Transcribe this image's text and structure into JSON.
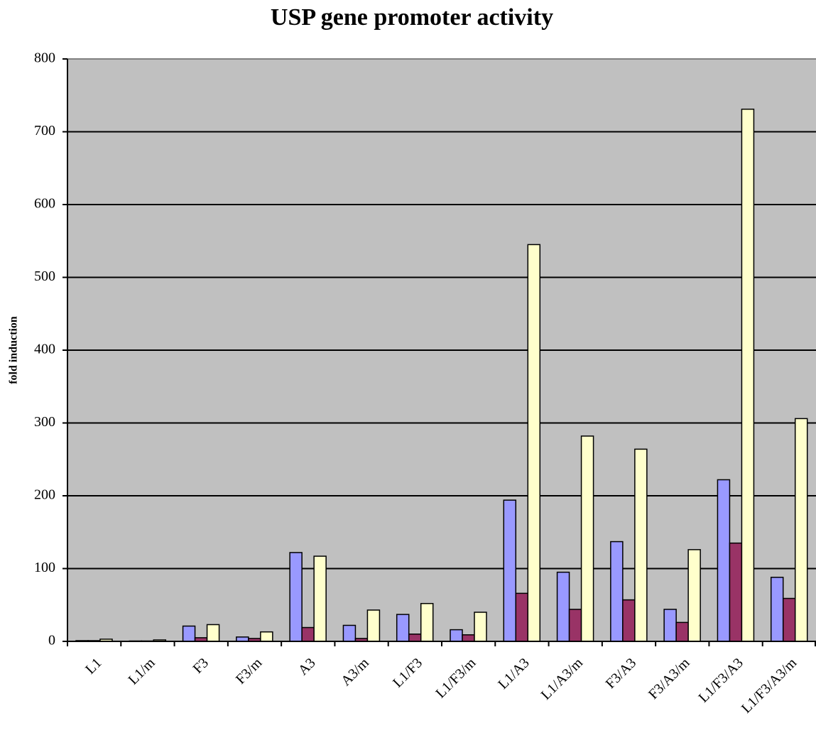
{
  "chart_data": {
    "type": "bar",
    "title": "USP gene promoter activity",
    "ylabel": "fold induction",
    "categories": [
      "L1",
      "L1/m",
      "F3",
      "F3/m",
      "A3",
      "A3/m",
      "L1/F3",
      "L1/F3/m",
      "L1/A3",
      "L1/A3/m",
      "F3/A3",
      "F3/A3/m",
      "L1/F3/A3",
      "L1/F3/A3/m"
    ],
    "series": [
      {
        "color": "#9999ff",
        "values": [
          1,
          0.5,
          21,
          6,
          122,
          22,
          37,
          16,
          194,
          95,
          137,
          44,
          222,
          88
        ]
      },
      {
        "color": "#993366",
        "values": [
          1,
          0.5,
          5,
          4,
          19,
          4,
          10,
          9,
          66,
          44,
          57,
          26,
          135,
          59
        ]
      },
      {
        "color": "#ffffcc",
        "values": [
          3,
          2,
          23,
          13,
          117,
          43,
          52,
          40,
          545,
          282,
          264,
          126,
          731,
          306
        ]
      }
    ],
    "ylim": [
      0,
      800
    ],
    "yticks": [
      0,
      100,
      200,
      300,
      400,
      500,
      600,
      700,
      800
    ],
    "grid": true
  }
}
